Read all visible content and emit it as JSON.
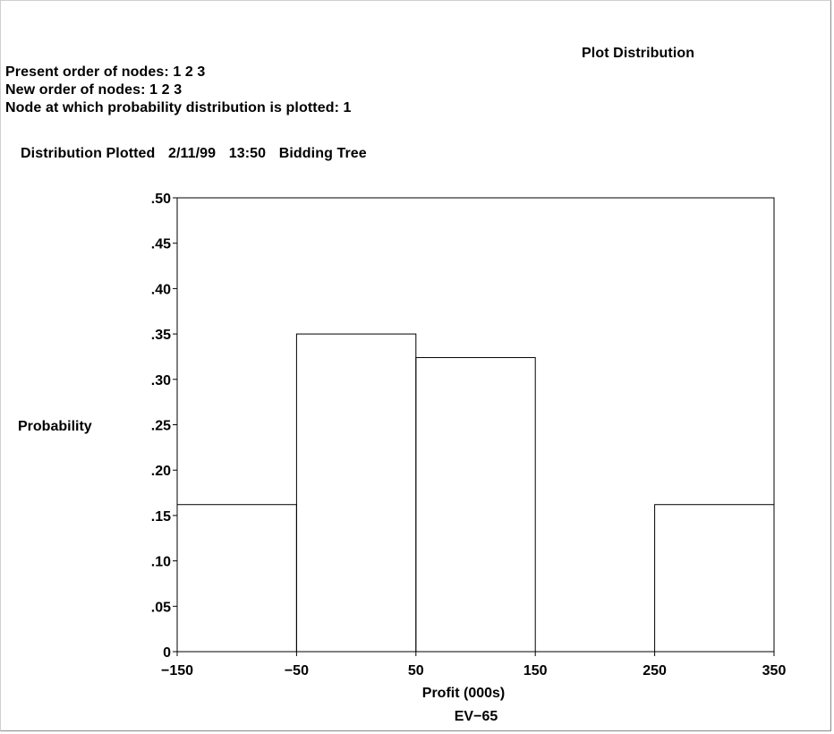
{
  "header": {
    "plot_title": "Plot Distribution",
    "present_order": "Present order of nodes: 1 2 3",
    "new_order": "New order of nodes: 1 2 3",
    "node_plotted": "Node at which probability distribution is plotted: 1",
    "dist_label": "Distribution Plotted",
    "date": "2/11/99",
    "time": "13:50",
    "tree_name": "Bidding Tree"
  },
  "chart_data": {
    "type": "bar",
    "title": "",
    "xlabel": "Profit (000s)",
    "ylabel": "Probability",
    "annotation": "EV−65",
    "bins": [
      {
        "from": -150,
        "to": -50,
        "value": 0.162
      },
      {
        "from": -50,
        "to": 50,
        "value": 0.35
      },
      {
        "from": 50,
        "to": 150,
        "value": 0.324
      },
      {
        "from": 150,
        "to": 250,
        "value": 0
      },
      {
        "from": 250,
        "to": 350,
        "value": 0.162
      }
    ],
    "xlim": [
      -150,
      350
    ],
    "ylim": [
      0,
      0.5
    ],
    "x_ticks": [
      -150,
      -50,
      50,
      150,
      250,
      350
    ],
    "x_tick_labels": [
      "−150",
      "−50",
      "50",
      "150",
      "250",
      "350"
    ],
    "y_ticks": [
      0,
      0.05,
      0.1,
      0.15,
      0.2,
      0.25,
      0.3,
      0.35,
      0.4,
      0.45,
      0.5
    ],
    "y_tick_labels": [
      "0",
      ".05",
      ".10",
      ".15",
      ".20",
      ".25",
      ".30",
      ".35",
      ".40",
      ".45",
      ".50"
    ],
    "grid": false
  }
}
